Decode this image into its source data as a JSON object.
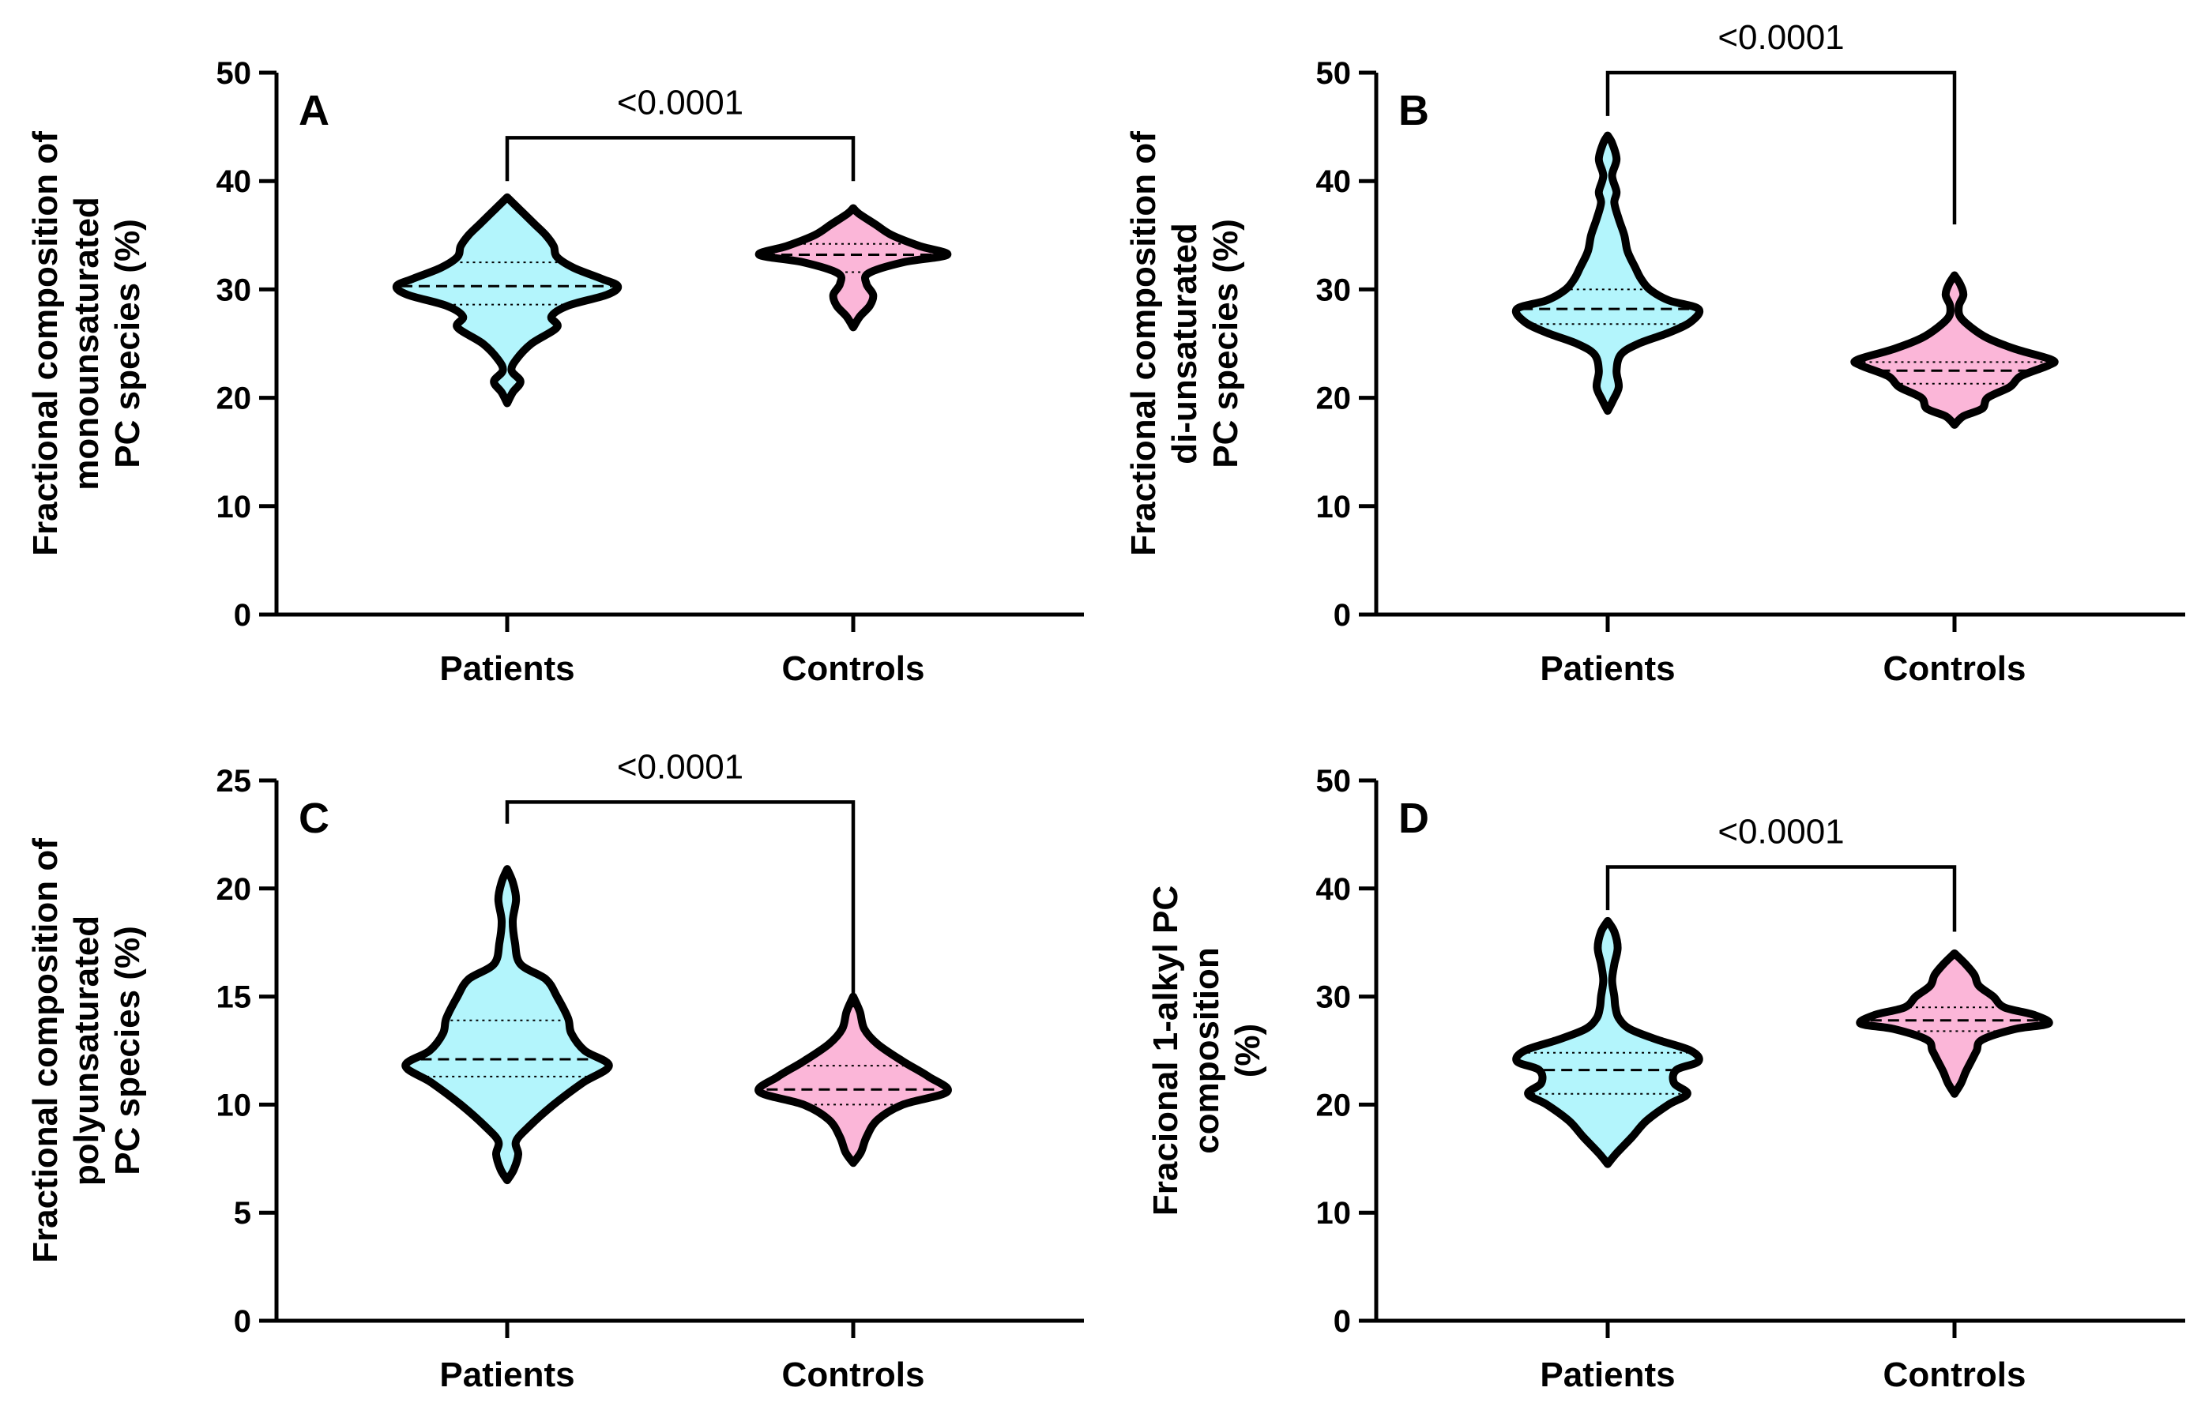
{
  "chart_data": [
    {
      "type": "violin",
      "panel_label": "A",
      "ylabel": [
        "Fractional composition of",
        "monounsaturated",
        "PC species (%)"
      ],
      "categories": [
        "Patients",
        "Controls"
      ],
      "ylim": [
        0,
        50
      ],
      "yticks": [
        0,
        10,
        20,
        30,
        40,
        50
      ],
      "colors": [
        "#b3f5fc",
        "#fbb6d8"
      ],
      "comparison": {
        "label": "<0.0001",
        "y": 44,
        "y_end": [
          40,
          40
        ]
      },
      "series": [
        {
          "name": "Patients",
          "median": 30.3,
          "q1": 28.6,
          "q3": 32.5,
          "profile": [
            [
              19.5,
              0
            ],
            [
              20.5,
              0.05
            ],
            [
              21.5,
              0.12
            ],
            [
              22.5,
              0.04
            ],
            [
              23.5,
              0.08
            ],
            [
              25,
              0.22
            ],
            [
              26.5,
              0.45
            ],
            [
              27.5,
              0.4
            ],
            [
              28.5,
              0.55
            ],
            [
              29.5,
              0.9
            ],
            [
              30.3,
              1.0
            ],
            [
              31,
              0.85
            ],
            [
              32,
              0.6
            ],
            [
              33,
              0.45
            ],
            [
              34,
              0.42
            ],
            [
              35,
              0.35
            ],
            [
              36,
              0.25
            ],
            [
              37,
              0.15
            ],
            [
              38,
              0.05
            ],
            [
              38.5,
              0
            ]
          ]
        },
        {
          "name": "Controls",
          "median": 33.2,
          "q1": 31.6,
          "q3": 34.2,
          "profile": [
            [
              26.5,
              0
            ],
            [
              27.5,
              0.06
            ],
            [
              28.5,
              0.15
            ],
            [
              29.5,
              0.18
            ],
            [
              30.5,
              0.12
            ],
            [
              31.5,
              0.14
            ],
            [
              32.5,
              0.45
            ],
            [
              33.2,
              0.85
            ],
            [
              34,
              0.6
            ],
            [
              35,
              0.35
            ],
            [
              36,
              0.2
            ],
            [
              37,
              0.05
            ],
            [
              37.5,
              0
            ]
          ]
        }
      ]
    },
    {
      "type": "violin",
      "panel_label": "B",
      "ylabel": [
        "Fractional composition of",
        "di-unsaturated",
        "PC species (%)"
      ],
      "categories": [
        "Patients",
        "Controls"
      ],
      "ylim": [
        0,
        50
      ],
      "yticks": [
        0,
        10,
        20,
        30,
        40,
        50
      ],
      "colors": [
        "#b3f5fc",
        "#fbb6d8"
      ],
      "comparison": {
        "label": "<0.0001",
        "y": 50,
        "y_end": [
          46,
          36
        ]
      },
      "series": [
        {
          "name": "Patients",
          "median": 28.2,
          "q1": 26.8,
          "q3": 30.0,
          "profile": [
            [
              18.8,
              0
            ],
            [
              19.8,
              0.05
            ],
            [
              21,
              0.1
            ],
            [
              22.5,
              0.08
            ],
            [
              24,
              0.12
            ],
            [
              25,
              0.28
            ],
            [
              26,
              0.55
            ],
            [
              27,
              0.75
            ],
            [
              28.2,
              0.82
            ],
            [
              29,
              0.55
            ],
            [
              30,
              0.38
            ],
            [
              31,
              0.3
            ],
            [
              32,
              0.25
            ],
            [
              33.5,
              0.18
            ],
            [
              35,
              0.15
            ],
            [
              36.5,
              0.1
            ],
            [
              38,
              0.06
            ],
            [
              39,
              0.08
            ],
            [
              40.5,
              0.04
            ],
            [
              42,
              0.08
            ],
            [
              43.5,
              0.04
            ],
            [
              44.2,
              0
            ]
          ]
        },
        {
          "name": "Controls",
          "median": 22.5,
          "q1": 21.3,
          "q3": 23.3,
          "profile": [
            [
              17.5,
              0
            ],
            [
              18.3,
              0.08
            ],
            [
              19,
              0.25
            ],
            [
              20,
              0.3
            ],
            [
              21,
              0.5
            ],
            [
              22,
              0.6
            ],
            [
              23,
              0.85
            ],
            [
              23.5,
              0.88
            ],
            [
              24.5,
              0.55
            ],
            [
              25.5,
              0.3
            ],
            [
              26.5,
              0.15
            ],
            [
              27.5,
              0.05
            ],
            [
              28.5,
              0.04
            ],
            [
              29.5,
              0.08
            ],
            [
              30.5,
              0.05
            ],
            [
              31.3,
              0
            ]
          ]
        }
      ]
    },
    {
      "type": "violin",
      "panel_label": "C",
      "ylabel": [
        "Fractional composition of",
        "polyunsaturated",
        "PC species (%)"
      ],
      "categories": [
        "Patients",
        "Controls"
      ],
      "ylim": [
        0,
        25
      ],
      "yticks": [
        0,
        5,
        10,
        15,
        20,
        25
      ],
      "colors": [
        "#b3f5fc",
        "#fbb6d8"
      ],
      "comparison": {
        "label": "<0.0001",
        "y": 24,
        "y_end": [
          23,
          14.5
        ]
      },
      "series": [
        {
          "name": "Patients",
          "median": 12.1,
          "q1": 11.3,
          "q3": 13.9,
          "profile": [
            [
              6.5,
              0
            ],
            [
              7,
              0.06
            ],
            [
              7.7,
              0.1
            ],
            [
              8.3,
              0.08
            ],
            [
              9,
              0.2
            ],
            [
              10,
              0.42
            ],
            [
              11,
              0.68
            ],
            [
              11.8,
              0.92
            ],
            [
              12.5,
              0.7
            ],
            [
              13.3,
              0.58
            ],
            [
              14,
              0.55
            ],
            [
              15,
              0.45
            ],
            [
              15.8,
              0.35
            ],
            [
              16.5,
              0.12
            ],
            [
              17.5,
              0.07
            ],
            [
              18.5,
              0.05
            ],
            [
              19.5,
              0.08
            ],
            [
              20.3,
              0.05
            ],
            [
              20.9,
              0
            ]
          ]
        },
        {
          "name": "Controls",
          "median": 10.7,
          "q1": 10.0,
          "q3": 11.8,
          "profile": [
            [
              7.3,
              0
            ],
            [
              7.8,
              0.07
            ],
            [
              8.5,
              0.12
            ],
            [
              9.3,
              0.22
            ],
            [
              10,
              0.45
            ],
            [
              10.6,
              0.85
            ],
            [
              11.3,
              0.68
            ],
            [
              12,
              0.45
            ],
            [
              12.8,
              0.22
            ],
            [
              13.5,
              0.1
            ],
            [
              14.3,
              0.06
            ],
            [
              15,
              0
            ]
          ]
        }
      ]
    },
    {
      "type": "violin",
      "panel_label": "D",
      "ylabel": [
        "Fracional 1-alkyl PC",
        "composition",
        "(%)"
      ],
      "categories": [
        "Patients",
        "Controls"
      ],
      "ylim": [
        0,
        50
      ],
      "yticks": [
        0,
        10,
        20,
        30,
        40,
        50
      ],
      "colors": [
        "#b3f5fc",
        "#fbb6d8"
      ],
      "comparison": {
        "label": "<0.0001",
        "y": 42,
        "y_end": [
          38,
          36
        ]
      },
      "series": [
        {
          "name": "Patients",
          "median": 23.2,
          "q1": 21.0,
          "q3": 24.8,
          "profile": [
            [
              14.5,
              0
            ],
            [
              15.5,
              0.08
            ],
            [
              17,
              0.22
            ],
            [
              18.5,
              0.35
            ],
            [
              20,
              0.55
            ],
            [
              21,
              0.72
            ],
            [
              22,
              0.6
            ],
            [
              23.2,
              0.62
            ],
            [
              24,
              0.82
            ],
            [
              25,
              0.75
            ],
            [
              26,
              0.45
            ],
            [
              27,
              0.2
            ],
            [
              28,
              0.1
            ],
            [
              29,
              0.07
            ],
            [
              30,
              0.06
            ],
            [
              31.5,
              0.04
            ],
            [
              33,
              0.06
            ],
            [
              34.5,
              0.09
            ],
            [
              36,
              0.06
            ],
            [
              37,
              0
            ]
          ]
        },
        {
          "name": "Controls",
          "median": 27.8,
          "q1": 26.8,
          "q3": 29.0,
          "profile": [
            [
              21,
              0
            ],
            [
              22,
              0.06
            ],
            [
              23,
              0.1
            ],
            [
              24,
              0.15
            ],
            [
              25,
              0.2
            ],
            [
              26,
              0.25
            ],
            [
              27,
              0.55
            ],
            [
              27.5,
              0.85
            ],
            [
              28.3,
              0.72
            ],
            [
              29,
              0.45
            ],
            [
              30,
              0.35
            ],
            [
              31,
              0.22
            ],
            [
              32,
              0.18
            ],
            [
              33,
              0.1
            ],
            [
              34,
              0
            ]
          ]
        }
      ]
    }
  ]
}
